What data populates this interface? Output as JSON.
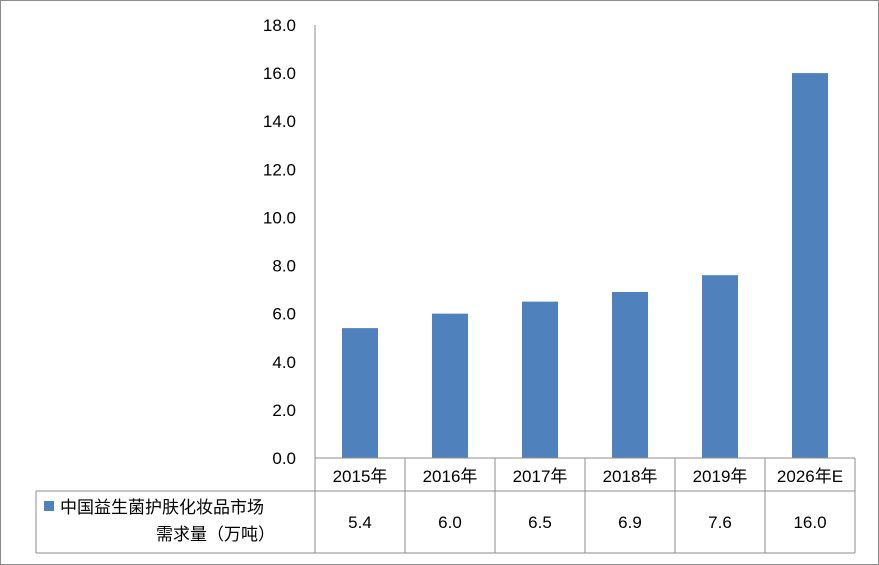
{
  "chart_data": {
    "type": "bar",
    "categories": [
      "2015年",
      "2016年",
      "2017年",
      "2018年",
      "2019年",
      "2026年E"
    ],
    "series": [
      {
        "name": "中国益生菌护肤化妆品市场需求量（万吨）",
        "name_lines": [
          "中国益生菌护肤化妆品市场",
          "需求量（万吨）"
        ],
        "values": [
          5.4,
          6.0,
          6.5,
          6.9,
          7.6,
          16.0
        ],
        "value_labels": [
          "5.4",
          "6.0",
          "6.5",
          "6.9",
          "7.6",
          "16.0"
        ],
        "color": "#4f81bd"
      }
    ],
    "yticks": [
      "0.0",
      "2.0",
      "4.0",
      "6.0",
      "8.0",
      "10.0",
      "12.0",
      "14.0",
      "16.0",
      "18.0"
    ],
    "ylim": [
      0,
      18
    ],
    "grid": false,
    "legend": "data-table-left",
    "data_table": true
  }
}
